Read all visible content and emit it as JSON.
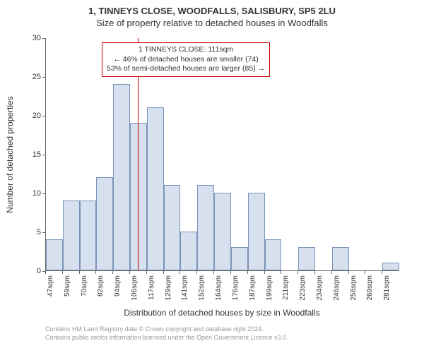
{
  "title_line1": "1, TINNEYS CLOSE, WOODFALLS, SALISBURY, SP5 2LU",
  "title_line2": "Size of property relative to detached houses in Woodfalls",
  "chart": {
    "type": "histogram",
    "ylabel": "Number of detached properties",
    "xlabel": "Distribution of detached houses by size in Woodfalls",
    "ylim": [
      0,
      30
    ],
    "ytick_step": 5,
    "yticks": [
      0,
      5,
      10,
      15,
      20,
      25,
      30
    ],
    "bar_fill": "#d6e0ef",
    "bar_stroke": "#7a93b8",
    "background_color": "#ffffff",
    "axis_color": "#666666",
    "reference_line": {
      "value": 111,
      "color": "#cc0000"
    },
    "categories": [
      "47sqm",
      "59sqm",
      "70sqm",
      "82sqm",
      "94sqm",
      "106sqm",
      "117sqm",
      "129sqm",
      "141sqm",
      "152sqm",
      "164sqm",
      "176sqm",
      "187sqm",
      "199sqm",
      "211sqm",
      "223sqm",
      "234sqm",
      "246sqm",
      "258sqm",
      "269sqm",
      "281sqm"
    ],
    "values": [
      4,
      9,
      9,
      12,
      24,
      19,
      21,
      11,
      5,
      11,
      10,
      3,
      10,
      4,
      0,
      3,
      0,
      3,
      0,
      0,
      1
    ],
    "bar_width_ratio": 1.0
  },
  "annotation": {
    "line1": "1 TINNEYS CLOSE: 111sqm",
    "line2": "← 46% of detached houses are smaller (74)",
    "line3": "53% of semi-detached houses are larger (85) →",
    "border_color": "#cc0000"
  },
  "footer": {
    "line1": "Contains HM Land Registry data © Crown copyright and database right 2024.",
    "line2": "Contains public sector information licensed under the Open Government Licence v3.0."
  }
}
